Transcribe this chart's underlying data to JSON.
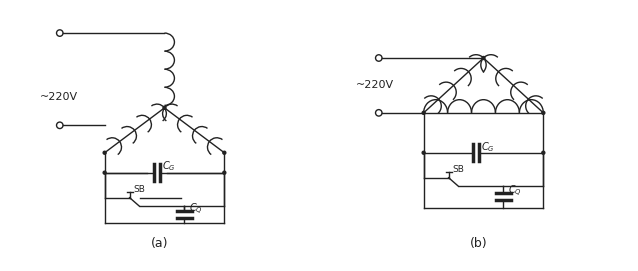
{
  "bg_color": "#ffffff",
  "line_color": "#222222",
  "label_a": "(a)",
  "label_b": "(b)",
  "voltage_label": "~220V"
}
